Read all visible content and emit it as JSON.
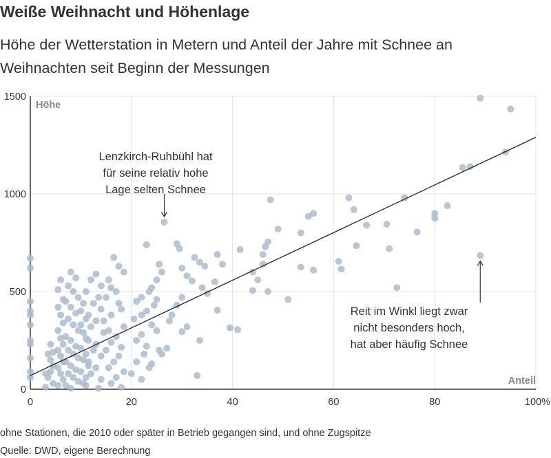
{
  "title": "Weiße Weihnacht und Höhenlage",
  "subtitle": "Höhe der Wetterstation in Metern und Anteil der Jahre mit Schnee an Weihnachten seit Beginn der Messungen",
  "note": "ohne Stationen, die 2010 oder später in Betrieb gegangen sind, und ohne Zugspitze",
  "source": "Quelle: DWD, eigene Berechnung",
  "colors": {
    "point": "#a9b9c9",
    "line": "#222222",
    "grid": "#e3e3e3",
    "axis": "#333333",
    "axis_label": "#888888"
  },
  "chart_data": {
    "type": "scatter",
    "title": "Weiße Weihnacht und Höhenlage",
    "xlabel": "Anteil",
    "ylabel": "Höhe",
    "xlim": [
      0,
      100
    ],
    "ylim": [
      0,
      1500
    ],
    "x_ticks": [
      0,
      20,
      40,
      60,
      80,
      100
    ],
    "x_tick_labels": [
      "0",
      "20",
      "40",
      "60",
      "80",
      "100%"
    ],
    "y_ticks": [
      0,
      500,
      1000,
      1500
    ],
    "y_tick_labels": [
      "0",
      "500",
      "1000",
      "1500"
    ],
    "grid": true,
    "trendline": {
      "x": [
        0,
        100
      ],
      "y": [
        70,
        1290
      ]
    },
    "points": [
      [
        89,
        1490
      ],
      [
        95,
        1435
      ],
      [
        94,
        1215
      ],
      [
        85.5,
        1135
      ],
      [
        87,
        1140
      ],
      [
        74,
        980
      ],
      [
        82.5,
        940
      ],
      [
        80,
        900
      ],
      [
        80,
        875
      ],
      [
        70.5,
        845
      ],
      [
        76.5,
        805
      ],
      [
        71,
        720
      ],
      [
        89,
        685
      ],
      [
        63,
        980
      ],
      [
        64,
        920
      ],
      [
        66.5,
        840
      ],
      [
        64.5,
        735
      ],
      [
        61,
        655
      ],
      [
        61.5,
        615
      ],
      [
        72.5,
        520
      ],
      [
        56,
        900
      ],
      [
        55,
        885
      ],
      [
        53.5,
        800
      ],
      [
        53.5,
        625
      ],
      [
        56,
        610
      ],
      [
        51,
        460
      ],
      [
        47.5,
        970
      ],
      [
        49,
        820
      ],
      [
        47,
        755
      ],
      [
        46.5,
        730
      ],
      [
        46,
        690
      ],
      [
        46,
        640
      ],
      [
        44,
        600
      ],
      [
        45,
        560
      ],
      [
        41.5,
        715
      ],
      [
        38,
        640
      ],
      [
        37,
        690
      ],
      [
        36.5,
        550
      ],
      [
        37,
        405
      ],
      [
        47,
        500
      ],
      [
        44,
        505
      ],
      [
        39.5,
        315
      ],
      [
        41,
        305
      ],
      [
        26.5,
        855
      ],
      [
        23,
        740
      ],
      [
        29,
        745
      ],
      [
        29.5,
        720
      ],
      [
        32.5,
        675
      ],
      [
        33.5,
        650
      ],
      [
        34.5,
        630
      ],
      [
        30,
        620
      ],
      [
        31,
        580
      ],
      [
        32,
        555
      ],
      [
        34,
        520
      ],
      [
        35,
        490
      ],
      [
        30,
        470
      ],
      [
        29,
        430
      ],
      [
        28,
        380
      ],
      [
        27.5,
        350
      ],
      [
        31,
        320
      ],
      [
        30,
        295
      ],
      [
        33.5,
        250
      ],
      [
        33,
        70
      ],
      [
        27,
        210
      ],
      [
        26,
        180
      ],
      [
        25.5,
        640
      ],
      [
        26,
        600
      ],
      [
        25,
        560
      ],
      [
        24,
        520
      ],
      [
        23.5,
        500
      ],
      [
        25,
        460
      ],
      [
        24.5,
        430
      ],
      [
        22,
        470
      ],
      [
        21,
        450
      ],
      [
        23,
        400
      ],
      [
        22,
        380
      ],
      [
        20.5,
        360
      ],
      [
        24,
        330
      ],
      [
        25,
        300
      ],
      [
        22,
        280
      ],
      [
        21,
        250
      ],
      [
        23,
        220
      ],
      [
        22.5,
        180
      ],
      [
        21,
        140
      ],
      [
        23.5,
        110
      ],
      [
        20,
        80
      ],
      [
        22,
        50
      ],
      [
        24,
        130
      ],
      [
        25.5,
        200
      ],
      [
        16.5,
        675
      ],
      [
        17.5,
        630
      ],
      [
        18.5,
        600
      ],
      [
        15.5,
        560
      ],
      [
        16,
        520
      ],
      [
        17,
        500
      ],
      [
        15,
        470
      ],
      [
        17.5,
        440
      ],
      [
        18,
        410
      ],
      [
        16,
        380
      ],
      [
        14.5,
        350
      ],
      [
        18.5,
        320
      ],
      [
        15.5,
        300
      ],
      [
        17,
        270
      ],
      [
        16,
        240
      ],
      [
        18,
        215
      ],
      [
        15,
        200
      ],
      [
        17.5,
        170
      ],
      [
        16.5,
        140
      ],
      [
        15.5,
        110
      ],
      [
        18.5,
        90
      ],
      [
        17,
        60
      ],
      [
        16,
        30
      ],
      [
        18,
        10
      ],
      [
        13,
        590
      ],
      [
        12,
        560
      ],
      [
        14,
        530
      ],
      [
        11,
        500
      ],
      [
        13.5,
        470
      ],
      [
        12.5,
        440
      ],
      [
        14,
        410
      ],
      [
        11.5,
        380
      ],
      [
        13,
        350
      ],
      [
        12,
        320
      ],
      [
        14.5,
        290
      ],
      [
        11,
        260
      ],
      [
        13,
        230
      ],
      [
        12.5,
        200
      ],
      [
        14,
        170
      ],
      [
        11.5,
        140
      ],
      [
        13,
        110
      ],
      [
        12,
        80
      ],
      [
        14,
        50
      ],
      [
        11,
        20
      ],
      [
        13.5,
        5
      ],
      [
        10.5,
        440
      ],
      [
        10,
        400
      ],
      [
        11,
        360
      ],
      [
        10,
        330
      ],
      [
        10.5,
        290
      ],
      [
        11.5,
        250
      ],
      [
        10,
        210
      ],
      [
        11,
        180
      ],
      [
        10.5,
        150
      ],
      [
        11.5,
        120
      ],
      [
        10,
        90
      ],
      [
        11,
        60
      ],
      [
        10.5,
        30
      ],
      [
        8,
        600
      ],
      [
        9,
        570
      ],
      [
        7.5,
        530
      ],
      [
        8.5,
        500
      ],
      [
        9.5,
        470
      ],
      [
        7,
        450
      ],
      [
        8,
        420
      ],
      [
        9,
        390
      ],
      [
        7.5,
        360
      ],
      [
        8.5,
        330
      ],
      [
        9.5,
        300
      ],
      [
        7,
        270
      ],
      [
        8,
        250
      ],
      [
        9,
        220
      ],
      [
        7.5,
        200
      ],
      [
        8.5,
        180
      ],
      [
        9.5,
        160
      ],
      [
        7,
        140
      ],
      [
        8,
        120
      ],
      [
        9,
        100
      ],
      [
        7.5,
        80
      ],
      [
        8.5,
        60
      ],
      [
        9.5,
        40
      ],
      [
        7,
        20
      ],
      [
        8,
        5
      ],
      [
        6,
        560
      ],
      [
        5.5,
        510
      ],
      [
        6.5,
        460
      ],
      [
        5.5,
        420
      ],
      [
        6,
        380
      ],
      [
        6.5,
        340
      ],
      [
        5.5,
        300
      ],
      [
        6,
        260
      ],
      [
        6.5,
        230
      ],
      [
        5.5,
        200
      ],
      [
        6,
        170
      ],
      [
        6.5,
        140
      ],
      [
        5.5,
        110
      ],
      [
        6,
        80
      ],
      [
        6.5,
        50
      ],
      [
        5.5,
        20
      ],
      [
        4,
        230
      ],
      [
        4.5,
        190
      ],
      [
        4,
        150
      ],
      [
        4.5,
        120
      ],
      [
        4,
        90
      ],
      [
        3.5,
        60
      ],
      [
        4.5,
        30
      ],
      [
        3,
        10
      ],
      [
        3.5,
        180
      ],
      [
        3,
        80
      ],
      [
        0,
        670
      ],
      [
        0,
        620
      ],
      [
        0,
        450
      ],
      [
        0,
        400
      ],
      [
        0,
        380
      ],
      [
        0,
        330
      ],
      [
        0,
        250
      ],
      [
        0,
        230
      ],
      [
        0,
        160
      ],
      [
        0,
        90
      ],
      [
        0,
        60
      ]
    ],
    "annotations": [
      {
        "lines": [
          "Lenzkirch-Ruhbühl hat",
          "für seine relativ hohe",
          "Lage selten Schnee"
        ],
        "target": [
          26.5,
          855
        ]
      },
      {
        "lines": [
          "Reit im Winkl liegt zwar",
          "nicht besonders hoch,",
          "hat aber häufig Schnee"
        ],
        "target": [
          89,
          685
        ]
      }
    ]
  }
}
